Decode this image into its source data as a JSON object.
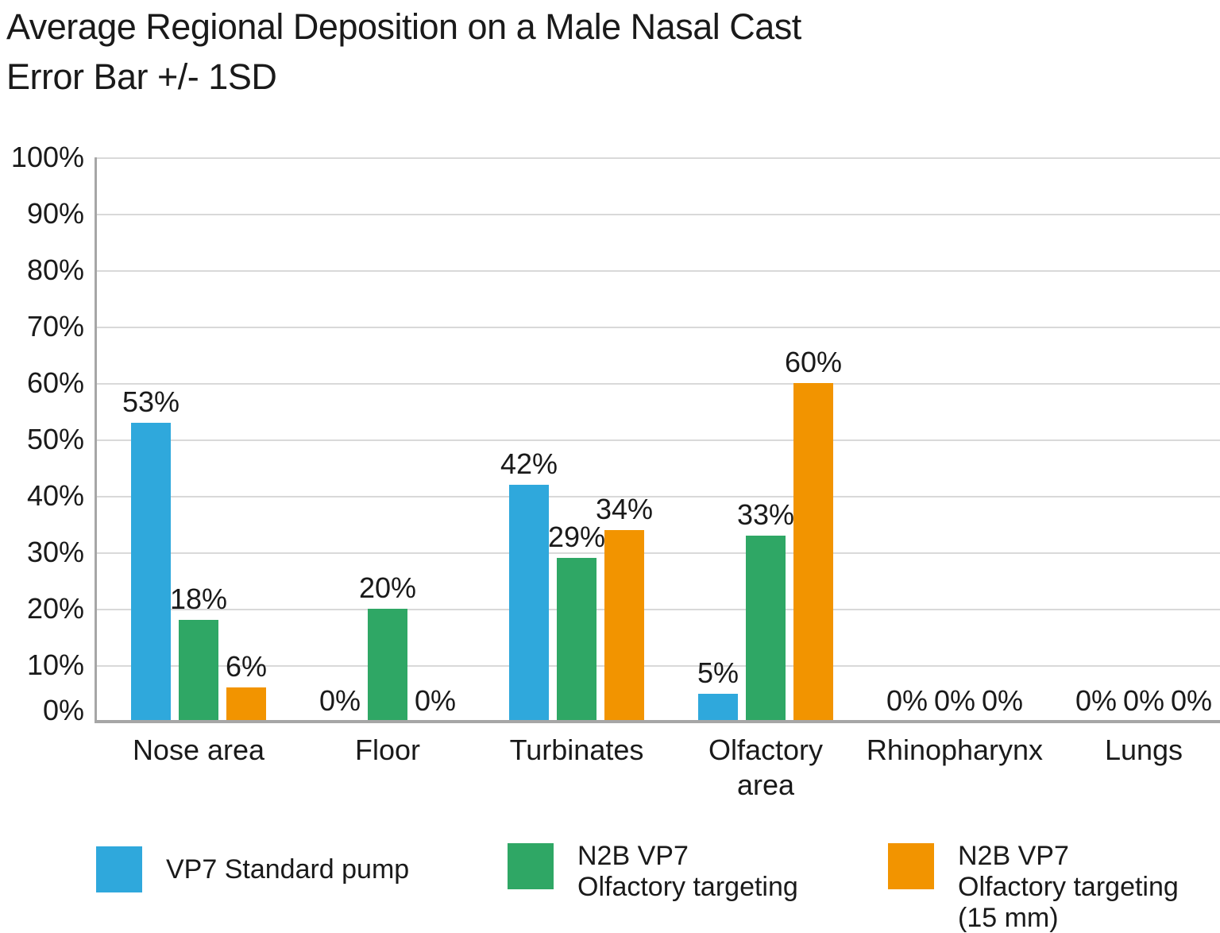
{
  "title": {
    "line1": "Average Regional Deposition on a Male Nasal Cast",
    "line2": "Error Bar +/- 1SD"
  },
  "colors": {
    "blue": "#2FA8DC",
    "green": "#2FA765",
    "orange": "#F29400",
    "gridline": "#D9D9D9",
    "axis": "#A6A6A6",
    "text": "#1A1A1A"
  },
  "chart_data": {
    "type": "bar",
    "title": "Average Regional Deposition on a Male Nasal Cast",
    "subtitle": "Error Bar +/- 1SD",
    "categories": [
      "Nose area",
      "Floor",
      "Turbinates",
      "Olfactory area",
      "Rhinopharynx",
      "Lungs"
    ],
    "category_label_lines": [
      [
        "Nose area"
      ],
      [
        "Floor"
      ],
      [
        "Turbinates"
      ],
      [
        "Olfactory",
        "area"
      ],
      [
        "Rhinopharynx"
      ],
      [
        "Lungs"
      ]
    ],
    "series": [
      {
        "name": "VP7 Standard pump",
        "legend_lines": [
          "VP7 Standard pump"
        ],
        "color": "#2FA8DC",
        "values": [
          53,
          0,
          42,
          5,
          0,
          0
        ]
      },
      {
        "name": "N2B VP7 Olfactory targeting",
        "legend_lines": [
          "N2B VP7",
          "Olfactory targeting"
        ],
        "color": "#2FA765",
        "values": [
          18,
          20,
          29,
          33,
          0,
          0
        ]
      },
      {
        "name": "N2B VP7 Olfactory targeting (15 mm)",
        "legend_lines": [
          "N2B VP7",
          "Olfactory targeting",
          "(15 mm)"
        ],
        "color": "#F29400",
        "values": [
          6,
          0,
          34,
          60,
          0,
          0
        ]
      }
    ],
    "data_label_suffix": "%",
    "xlabel": "",
    "ylabel": "",
    "ylim": [
      0,
      100
    ],
    "ytick_step": 10,
    "ytick_labels": [
      "100%",
      "90%",
      "80%",
      "70%",
      "60%",
      "50%",
      "40%",
      "30%",
      "20%",
      "10%",
      "0%"
    ],
    "grid": true,
    "legend_position": "bottom"
  }
}
